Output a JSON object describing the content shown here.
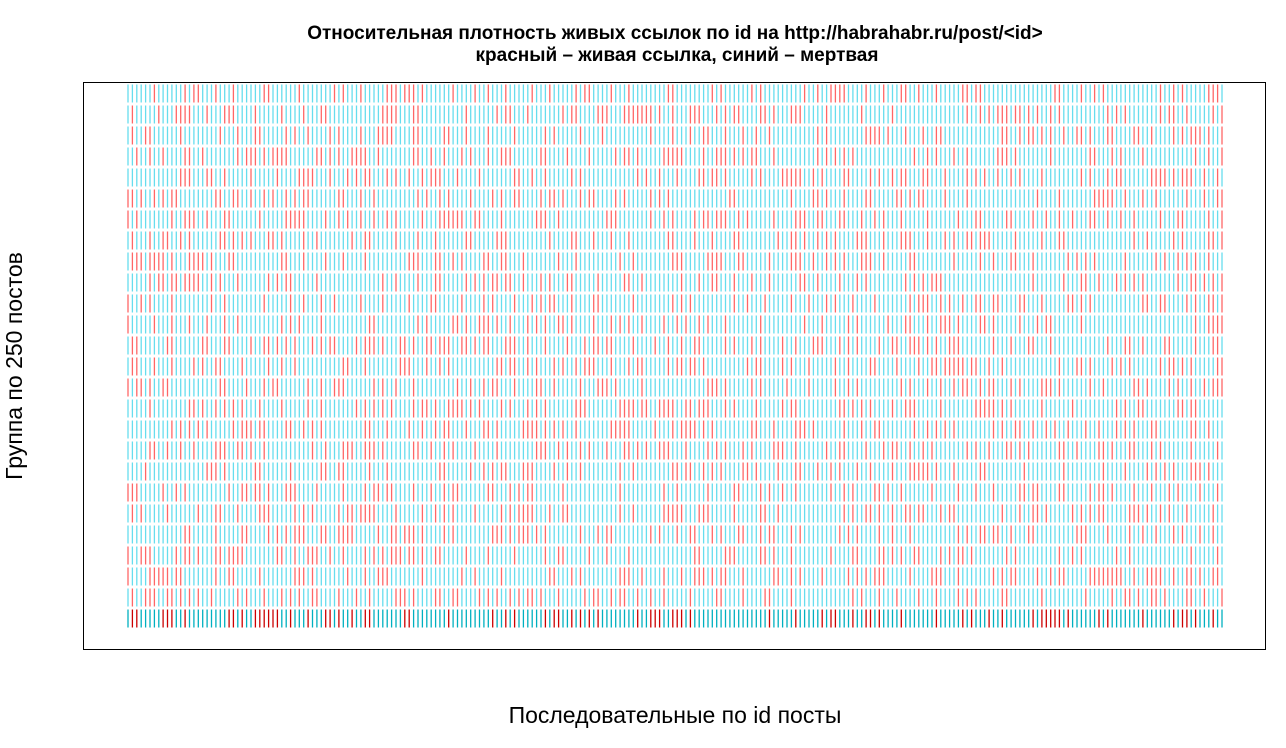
{
  "chart_data": {
    "type": "heatmap",
    "title": "Относительная плотность живых ссылок по id на http://habrahabr.ru/post/<id>",
    "subtitle": "красный – живая ссылка, синий – мертвая",
    "xlabel": "Последовательные по id посты",
    "ylabel": "Группа по 250 постов",
    "group_size": 250,
    "legend": [
      {
        "label": "живая ссылка",
        "color": "#ff6666"
      },
      {
        "label": "мертвая ссылка",
        "color": "#66ddee"
      }
    ],
    "colors": {
      "alive": "#ff6666",
      "dead": "#66ddee",
      "alive_dark": "#cc0000",
      "dead_dark": "#00b0c0"
    },
    "grid": false,
    "frame": true,
    "last_row_darker": true,
    "row_count": 26,
    "posts_per_row": 250
  }
}
